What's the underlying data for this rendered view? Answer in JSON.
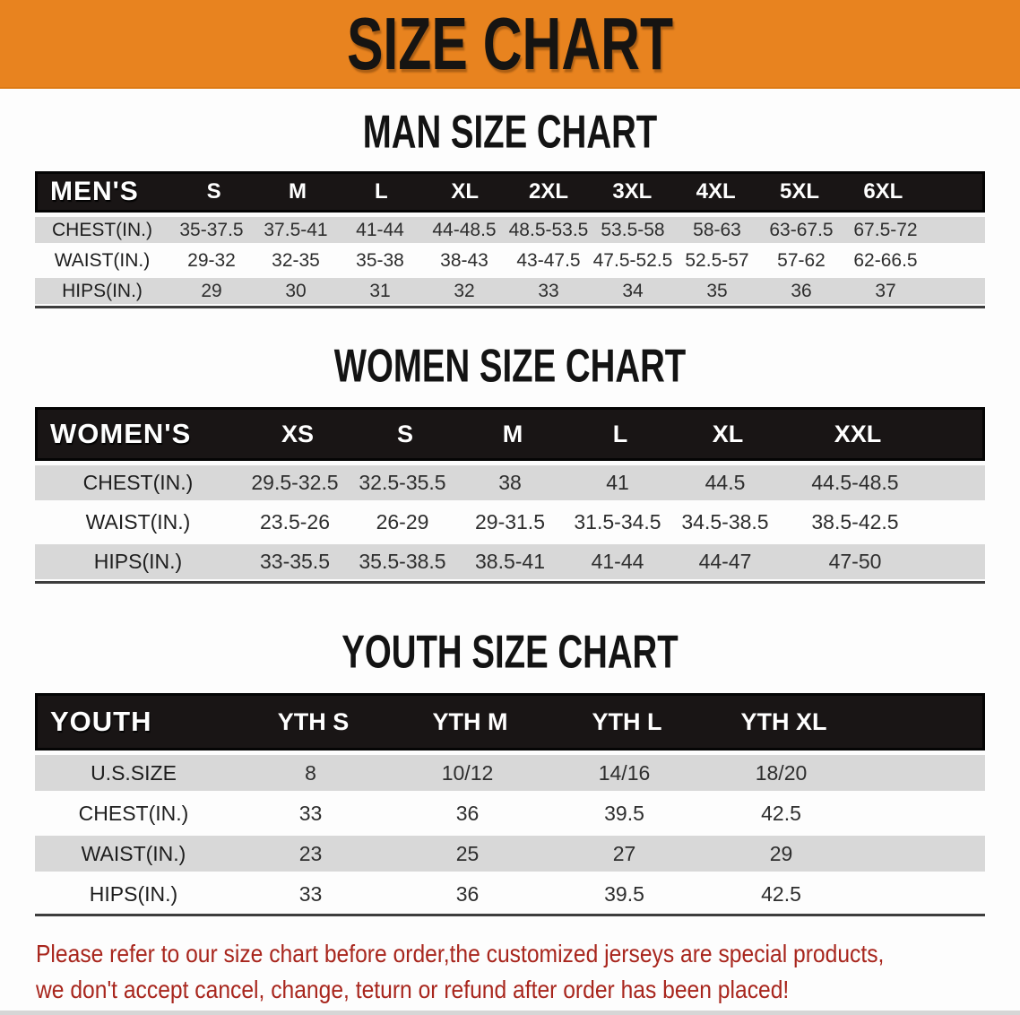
{
  "title": "SIZE CHART",
  "colors": {
    "banner_orange": "#E8831F",
    "table_header_black": "#191515",
    "row_stripe_gray": "#D8D8D8",
    "note_red": "#A8261D"
  },
  "sections": [
    {
      "id": "man",
      "heading": "MAN SIZE CHART",
      "label": "MEN'S",
      "columns": [
        "S",
        "M",
        "L",
        "XL",
        "2XL",
        "3XL",
        "4XL",
        "5XL",
        "6XL"
      ],
      "rows": [
        {
          "label": "CHEST(IN.)",
          "values": [
            "35-37.5",
            "37.5-41",
            "41-44",
            "44-48.5",
            "48.5-53.5",
            "53.5-58",
            "58-63",
            "63-67.5",
            "67.5-72"
          ]
        },
        {
          "label": "WAIST(IN.)",
          "values": [
            "29-32",
            "32-35",
            "35-38",
            "38-43",
            "43-47.5",
            "47.5-52.5",
            "52.5-57",
            "57-62",
            "62-66.5"
          ]
        },
        {
          "label": "HIPS(IN.)",
          "values": [
            "29",
            "30",
            "31",
            "32",
            "33",
            "34",
            "35",
            "36",
            "37"
          ]
        }
      ]
    },
    {
      "id": "women",
      "heading": "WOMEN SIZE CHART",
      "label": "WOMEN'S",
      "columns": [
        "XS",
        "S",
        "M",
        "L",
        "XL",
        "XXL"
      ],
      "rows": [
        {
          "label": "CHEST(IN.)",
          "values": [
            "29.5-32.5",
            "32.5-35.5",
            "38",
            "41",
            "44.5",
            "44.5-48.5"
          ]
        },
        {
          "label": "WAIST(IN.)",
          "values": [
            "23.5-26",
            "26-29",
            "29-31.5",
            "31.5-34.5",
            "34.5-38.5",
            "38.5-42.5"
          ]
        },
        {
          "label": "HIPS(IN.)",
          "values": [
            "33-35.5",
            "35.5-38.5",
            "38.5-41",
            "41-44",
            "44-47",
            "47-50"
          ]
        }
      ]
    },
    {
      "id": "youth",
      "heading": "YOUTH SIZE CHART",
      "label": "YOUTH",
      "columns": [
        "YTH S",
        "YTH M",
        "YTH L",
        "YTH XL"
      ],
      "rows": [
        {
          "label": "U.S.SIZE",
          "values": [
            "8",
            "10/12",
            "14/16",
            "18/20"
          ]
        },
        {
          "label": "CHEST(IN.)",
          "values": [
            "33",
            "36",
            "39.5",
            "42.5"
          ]
        },
        {
          "label": "WAIST(IN.)",
          "values": [
            "23",
            "25",
            "27",
            "29"
          ]
        },
        {
          "label": "HIPS(IN.)",
          "values": [
            "33",
            "36",
            "39.5",
            "42.5"
          ]
        }
      ]
    }
  ],
  "note": {
    "line1": "Please refer to our size chart before order,the customized jerseys are special products,",
    "line2": "we don't accept cancel, change, teturn or refund after order has been placed!"
  }
}
